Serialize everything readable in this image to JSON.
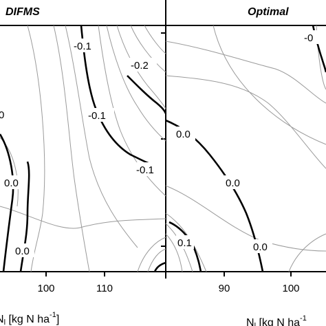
{
  "chart_data": [
    {
      "type": "contour",
      "title": "DIFMS",
      "x_tick_labels": [
        "100",
        "110"
      ],
      "xlabel": "N₁ [kg N ha⁻¹]",
      "xlabel_main": "N",
      "xlabel_sub": "l",
      "xlabel_unit": " [kg N ha",
      "xlabel_sup": "-1",
      "xlabel_close": "]",
      "contour_labels": [
        "0",
        "-0.1",
        "-0.2",
        "-0.1",
        "0.0",
        "-0.1",
        "0.0"
      ],
      "line_color_major": "#000000",
      "line_color_minor": "#9a9a9a"
    },
    {
      "type": "contour",
      "title": "Optimal",
      "x_tick_labels": [
        "90",
        "100"
      ],
      "xlabel_main": "N",
      "xlabel_sub": "l",
      "xlabel_unit": " [kg N ha",
      "xlabel_sup": "-1",
      "contour_labels": [
        "-0",
        "0.0",
        "0.0",
        "0.1",
        "0.0"
      ],
      "line_color_major": "#000000",
      "line_color_minor": "#9a9a9a"
    }
  ]
}
